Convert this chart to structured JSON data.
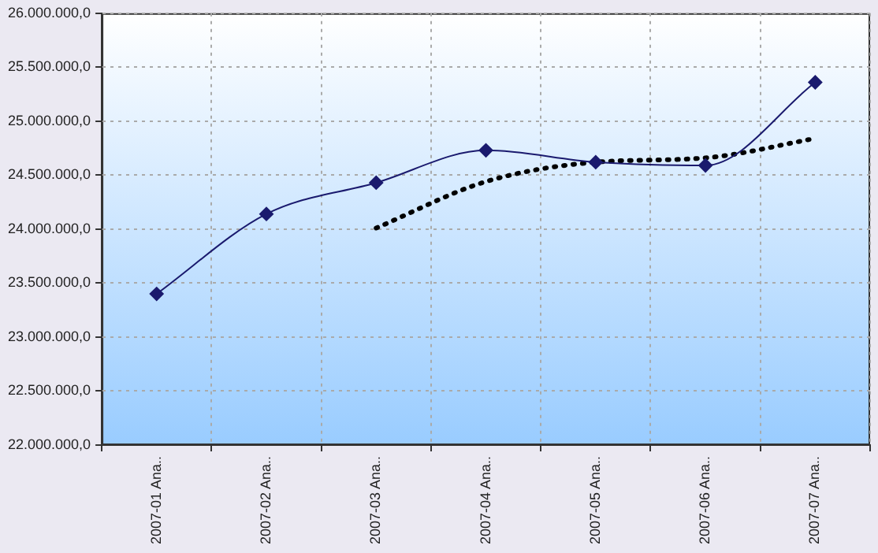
{
  "chart_data": {
    "type": "line",
    "categories": [
      "2007-01 Ana..",
      "2007-02 Ana..",
      "2007-03 Ana..",
      "2007-04 Ana..",
      "2007-05 Ana..",
      "2007-06 Ana..",
      "2007-07 Ana.."
    ],
    "series": [
      {
        "color": "#1a1a6e",
        "values": [
          23400000,
          24140000,
          24430000,
          24730000,
          24620000,
          24590000,
          25360000
        ],
        "marker": "diamond",
        "line_style": "solid"
      },
      {
        "color": "#000000",
        "values": [
          null,
          null,
          24010000,
          24440000,
          24620000,
          24660000,
          24840000
        ],
        "marker": "none",
        "line_style": "dotted"
      }
    ],
    "ylim": [
      22000000,
      26000000
    ],
    "yticks": [
      {
        "value": 22000000,
        "label": "22.000.000,0"
      },
      {
        "value": 22500000,
        "label": "22.500.000,0"
      },
      {
        "value": 23000000,
        "label": "23.000.000,0"
      },
      {
        "value": 23500000,
        "label": "23.500.000,0"
      },
      {
        "value": 24000000,
        "label": "24.000.000,0"
      },
      {
        "value": 24500000,
        "label": "24.500.000,0"
      },
      {
        "value": 25000000,
        "label": "25.000.000,0"
      },
      {
        "value": 25500000,
        "label": "25.500.000,0"
      },
      {
        "value": 26000000,
        "label": "26.000.000,0"
      }
    ],
    "grid": true,
    "legend": false
  }
}
